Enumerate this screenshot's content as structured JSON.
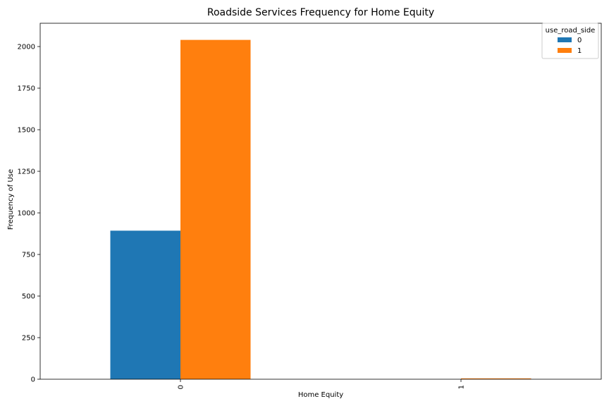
{
  "chart_data": {
    "type": "bar",
    "title": "Roadside Services Frequency for Home Equity",
    "xlabel": "Home Equity",
    "ylabel": "Frequency of Use",
    "categories": [
      "0",
      "1"
    ],
    "series": [
      {
        "name": "0",
        "values": [
          893,
          0
        ],
        "color": "#1f77b4"
      },
      {
        "name": "1",
        "values": [
          2040,
          5
        ],
        "color": "#ff7f0e"
      }
    ],
    "ylim": [
      0,
      2140
    ],
    "yticks": [
      0,
      250,
      500,
      750,
      1000,
      1250,
      1500,
      1750,
      2000
    ],
    "legend": {
      "title": "use_road_side",
      "placement": "top-right"
    },
    "grid": false
  }
}
